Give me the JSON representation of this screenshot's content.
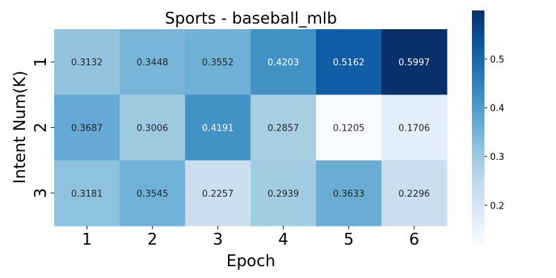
{
  "chart_data": {
    "type": "heatmap",
    "title": "Sports - baseball_mlb",
    "xlabel": "Epoch",
    "ylabel": "Intent Num(K)",
    "x_categories": [
      "1",
      "2",
      "3",
      "4",
      "5",
      "6"
    ],
    "y_categories": [
      "1",
      "2",
      "3"
    ],
    "values": [
      [
        0.3132,
        0.3448,
        0.3552,
        0.4203,
        0.5162,
        0.5997
      ],
      [
        0.3687,
        0.3006,
        0.4191,
        0.2857,
        0.1205,
        0.1706
      ],
      [
        0.3181,
        0.3545,
        0.2257,
        0.2939,
        0.3633,
        0.2296
      ]
    ],
    "value_labels": [
      [
        "0.3132",
        "0.3448",
        "0.3552",
        "0.4203",
        "0.5162",
        "0.5997"
      ],
      [
        "0.3687",
        "0.3006",
        "0.4191",
        "0.2857",
        "0.1205",
        "0.1706"
      ],
      [
        "0.3181",
        "0.3545",
        "0.2257",
        "0.2939",
        "0.3633",
        "0.2296"
      ]
    ],
    "colormap": "Blues",
    "colorbar": {
      "range": [
        0.1205,
        0.5997
      ],
      "ticks": [
        0.2,
        0.3,
        0.4,
        0.5
      ],
      "tick_labels": [
        "0.2",
        "0.3",
        "0.4",
        "0.5"
      ]
    }
  }
}
